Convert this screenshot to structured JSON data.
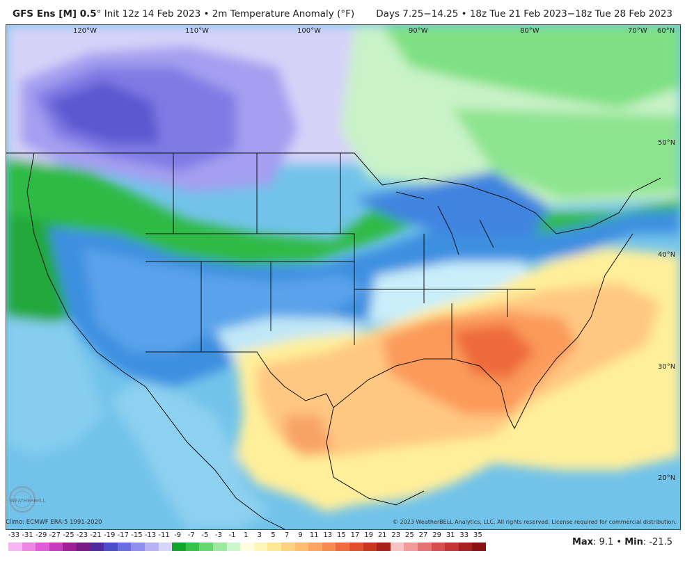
{
  "header": {
    "model": "GFS Ens [M] 0.5",
    "degree": "°",
    "init": " Init 12z 14 Feb 2023 • 2m Temperature Anomaly (°F)",
    "valid": "Days 7.25−14.25 • 18z Tue 21 Feb 2023−18z Tue 28 Feb 2023"
  },
  "longitudes": [
    "120°W",
    "110°W",
    "100°W",
    "90°W",
    "80°W",
    "70°W",
    "60°N"
  ],
  "latitudes": [
    "50°N",
    "40°N",
    "30°N",
    "20°N"
  ],
  "climo": "Climo: ECMWF ERA-5 1991-2020",
  "copyright": "© 2023 WeatherBELL Analytics, LLC. All rights reserved. License required for commercial distribution.",
  "colorbar": {
    "labels": [
      "-33",
      "-31",
      "-29",
      "-27",
      "-25",
      "-23",
      "-21",
      "-19",
      "-17",
      "-15",
      "-13",
      "-11",
      "-9",
      "-7",
      "-5",
      "-3",
      "-1",
      "1",
      "3",
      "5",
      "7",
      "9",
      "11",
      "13",
      "15",
      "17",
      "19",
      "21",
      "23",
      "25",
      "27",
      "29",
      "31",
      "33",
      "35"
    ],
    "colors": [
      "#f6b4f0",
      "#ee86e6",
      "#e05cd8",
      "#c63cbe",
      "#a01f97",
      "#7a1a86",
      "#4f2ba0",
      "#4a4cc8",
      "#6a6de0",
      "#8f8ff0",
      "#b6b3f5",
      "#d8d5fb",
      "#12a52c",
      "#34c24b",
      "#66d86f",
      "#9ae99c",
      "#ccf6cc",
      "#fffde0",
      "#fff5b8",
      "#ffe895",
      "#ffd27f",
      "#ffbd6d",
      "#fba55f",
      "#f58b4f",
      "#ee6b3b",
      "#e0502c",
      "#c7361f",
      "#a82317",
      "#f7c3c3",
      "#f09a9a",
      "#e57373",
      "#d64f4f",
      "#c43434",
      "#a71f1f",
      "#8a1111"
    ]
  },
  "stats": {
    "max_label": "Max",
    "max": "9.1",
    "sep": " • ",
    "min_label": "Min",
    "min": "-21.5"
  },
  "logo": {
    "text": "WEATHERBELL"
  }
}
